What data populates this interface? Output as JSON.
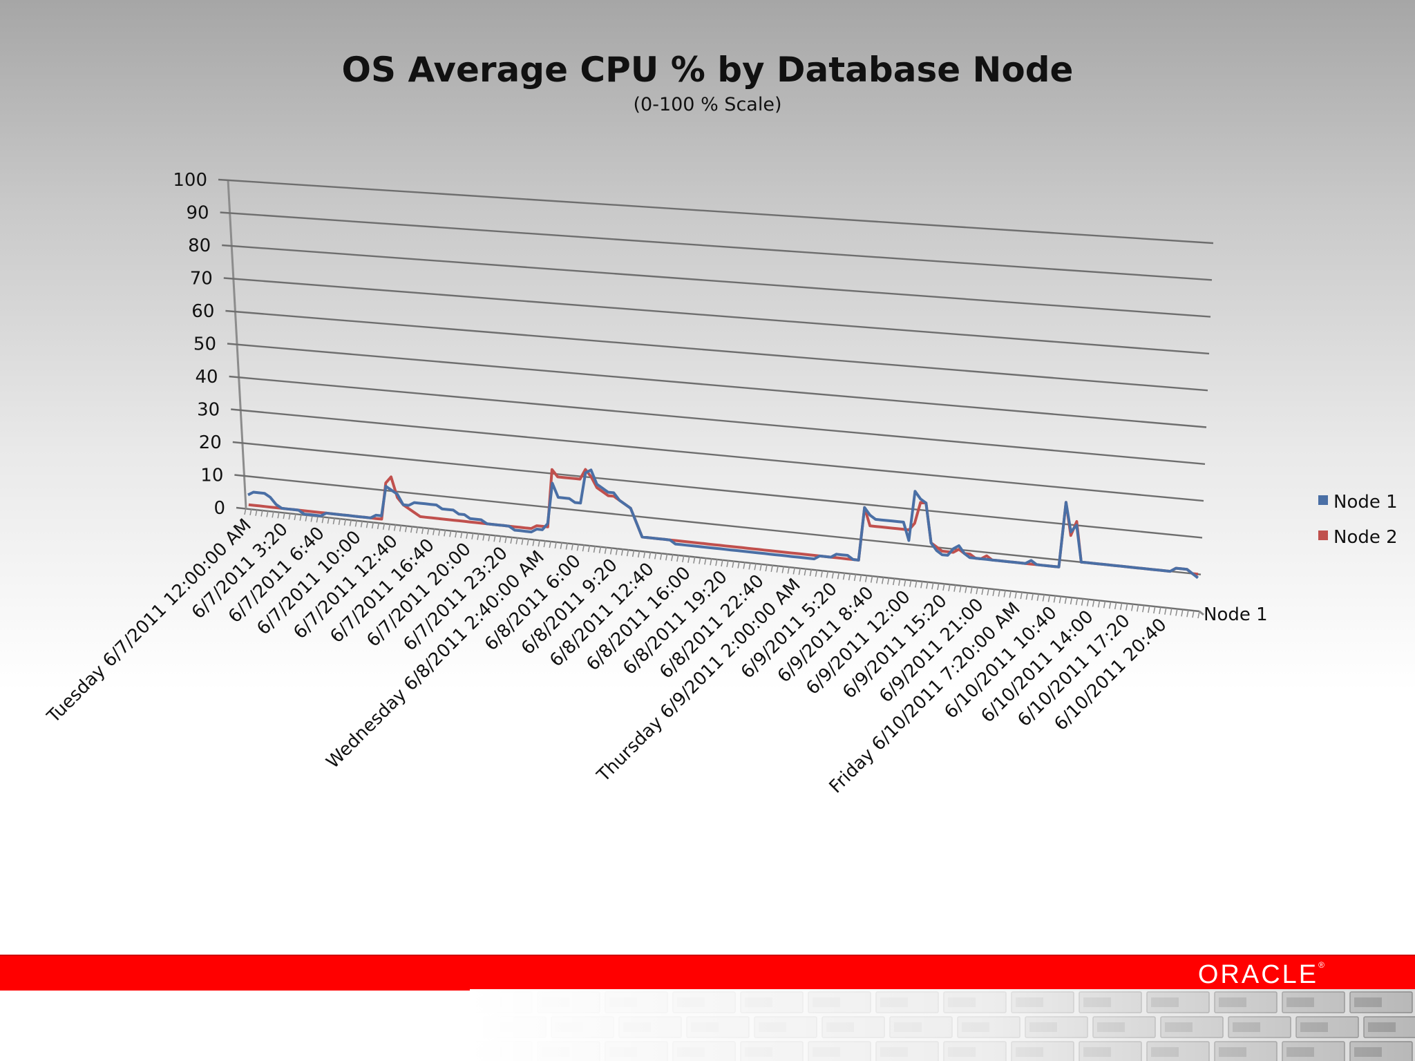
{
  "slide": {
    "title": "OS Average CPU % by Database Node",
    "subtitle": "(0-100 % Scale)",
    "brand": "ORACLE",
    "brand_mark": "®"
  },
  "colors": {
    "node1": "#4a6fa5",
    "node2": "#c0504d",
    "band": "#ff0000"
  },
  "chart_data": {
    "type": "line",
    "view": "3d-perspective",
    "title": "OS Average CPU % by Database Node",
    "subtitle": "(0-100 % Scale)",
    "ylim": [
      0,
      100
    ],
    "yticks": [
      0,
      10,
      20,
      30,
      40,
      50,
      60,
      70,
      80,
      90,
      100
    ],
    "grid": true,
    "legend_position": "right",
    "depth_axis_label": "Node 1",
    "x_tick_labels": [
      "Tuesday 6/7/2011  12:00:00 AM",
      "6/7/2011 3:20",
      "6/7/2011 6:40",
      "6/7/2011 10:00",
      "6/7/2011 12:40",
      "6/7/2011 16:40",
      "6/7/2011 20:00",
      "6/7/2011 23:20",
      "Wednesday 6/8/2011  2:40:00 AM",
      "6/8/2011 6:00",
      "6/8/2011 9:20",
      "6/8/2011 12:40",
      "6/8/2011 16:00",
      "6/8/2011 19:20",
      "6/8/2011 22:40",
      "Thursday 6/9/2011  2:00:00 AM",
      "6/9/2011 5:20",
      "6/9/2011 8:40",
      "6/9/2011 12:00",
      "6/9/2011 15:20",
      "6/9/2011 21:00",
      "Friday 6/10/2011  7:20:00 AM",
      "6/10/2011 10:40",
      "6/10/2011 14:00",
      "6/10/2011 17:20",
      "6/10/2011 20:40"
    ],
    "series": [
      {
        "name": "Node 1",
        "color": "#4a6fa5",
        "values": [
          4,
          5,
          5,
          5,
          4,
          2,
          1,
          1,
          1,
          1,
          0,
          0,
          0,
          0,
          1,
          1,
          1,
          1,
          1,
          1,
          1,
          1,
          1,
          2,
          2,
          11,
          10,
          9,
          6,
          6,
          7,
          7,
          7,
          7,
          7,
          6,
          6,
          6,
          5,
          5,
          4,
          4,
          4,
          3,
          3,
          3,
          3,
          3,
          2,
          2,
          2,
          2,
          3,
          3,
          5,
          17,
          13,
          13,
          13,
          12,
          12,
          21,
          22,
          18,
          17,
          16,
          16,
          14,
          13,
          12,
          8,
          4,
          4,
          4,
          4,
          4,
          4,
          3,
          3,
          3,
          3,
          3,
          3,
          3,
          3,
          3,
          3,
          3,
          3,
          3,
          3,
          3,
          3,
          3,
          3,
          3,
          3,
          3,
          3,
          3,
          3,
          3,
          3,
          4,
          4,
          4,
          5,
          5,
          5,
          4,
          4,
          19,
          17,
          16,
          16,
          16,
          16,
          16,
          16,
          11,
          25,
          23,
          22,
          11,
          9,
          8,
          8,
          10,
          11,
          9,
          8,
          8,
          8,
          8,
          8,
          8,
          8,
          8,
          8,
          8,
          8,
          9,
          8,
          8,
          8,
          8,
          8,
          26,
          18,
          20,
          10,
          10,
          10,
          10,
          10,
          10,
          10,
          10,
          10,
          10,
          10,
          10,
          10,
          10,
          10,
          10,
          10,
          11,
          11,
          11,
          10,
          9
        ]
      },
      {
        "name": "Node 2",
        "color": "#c0504d",
        "values": [
          1,
          1,
          1,
          1,
          1,
          1,
          1,
          1,
          1,
          1,
          1,
          1,
          1,
          1,
          1,
          1,
          1,
          1,
          1,
          1,
          1,
          1,
          1,
          1,
          1,
          12,
          14,
          8,
          6,
          5,
          4,
          3,
          3,
          3,
          3,
          3,
          3,
          3,
          3,
          3,
          3,
          3,
          3,
          3,
          3,
          3,
          3,
          3,
          3,
          3,
          3,
          3,
          4,
          4,
          4,
          21,
          19,
          19,
          19,
          19,
          19,
          22,
          20,
          17,
          16,
          15,
          15,
          14,
          13,
          12,
          8,
          4,
          4,
          4,
          4,
          4,
          4,
          4,
          4,
          4,
          4,
          4,
          4,
          4,
          4,
          4,
          4,
          4,
          4,
          4,
          4,
          4,
          4,
          4,
          4,
          4,
          4,
          4,
          4,
          4,
          4,
          4,
          4,
          4,
          4,
          4,
          4,
          4,
          4,
          4,
          4,
          19,
          14,
          14,
          14,
          14,
          14,
          14,
          14,
          14,
          16,
          22,
          22,
          11,
          10,
          9,
          9,
          9,
          10,
          9,
          9,
          8,
          8,
          9,
          8,
          8,
          8,
          8,
          8,
          8,
          8,
          8,
          8,
          8,
          8,
          8,
          8,
          26,
          17,
          21,
          10,
          10,
          10,
          10,
          10,
          10,
          10,
          10,
          10,
          10,
          10,
          10,
          10,
          10,
          10,
          10,
          10,
          11,
          11,
          11,
          10,
          10
        ]
      }
    ]
  }
}
